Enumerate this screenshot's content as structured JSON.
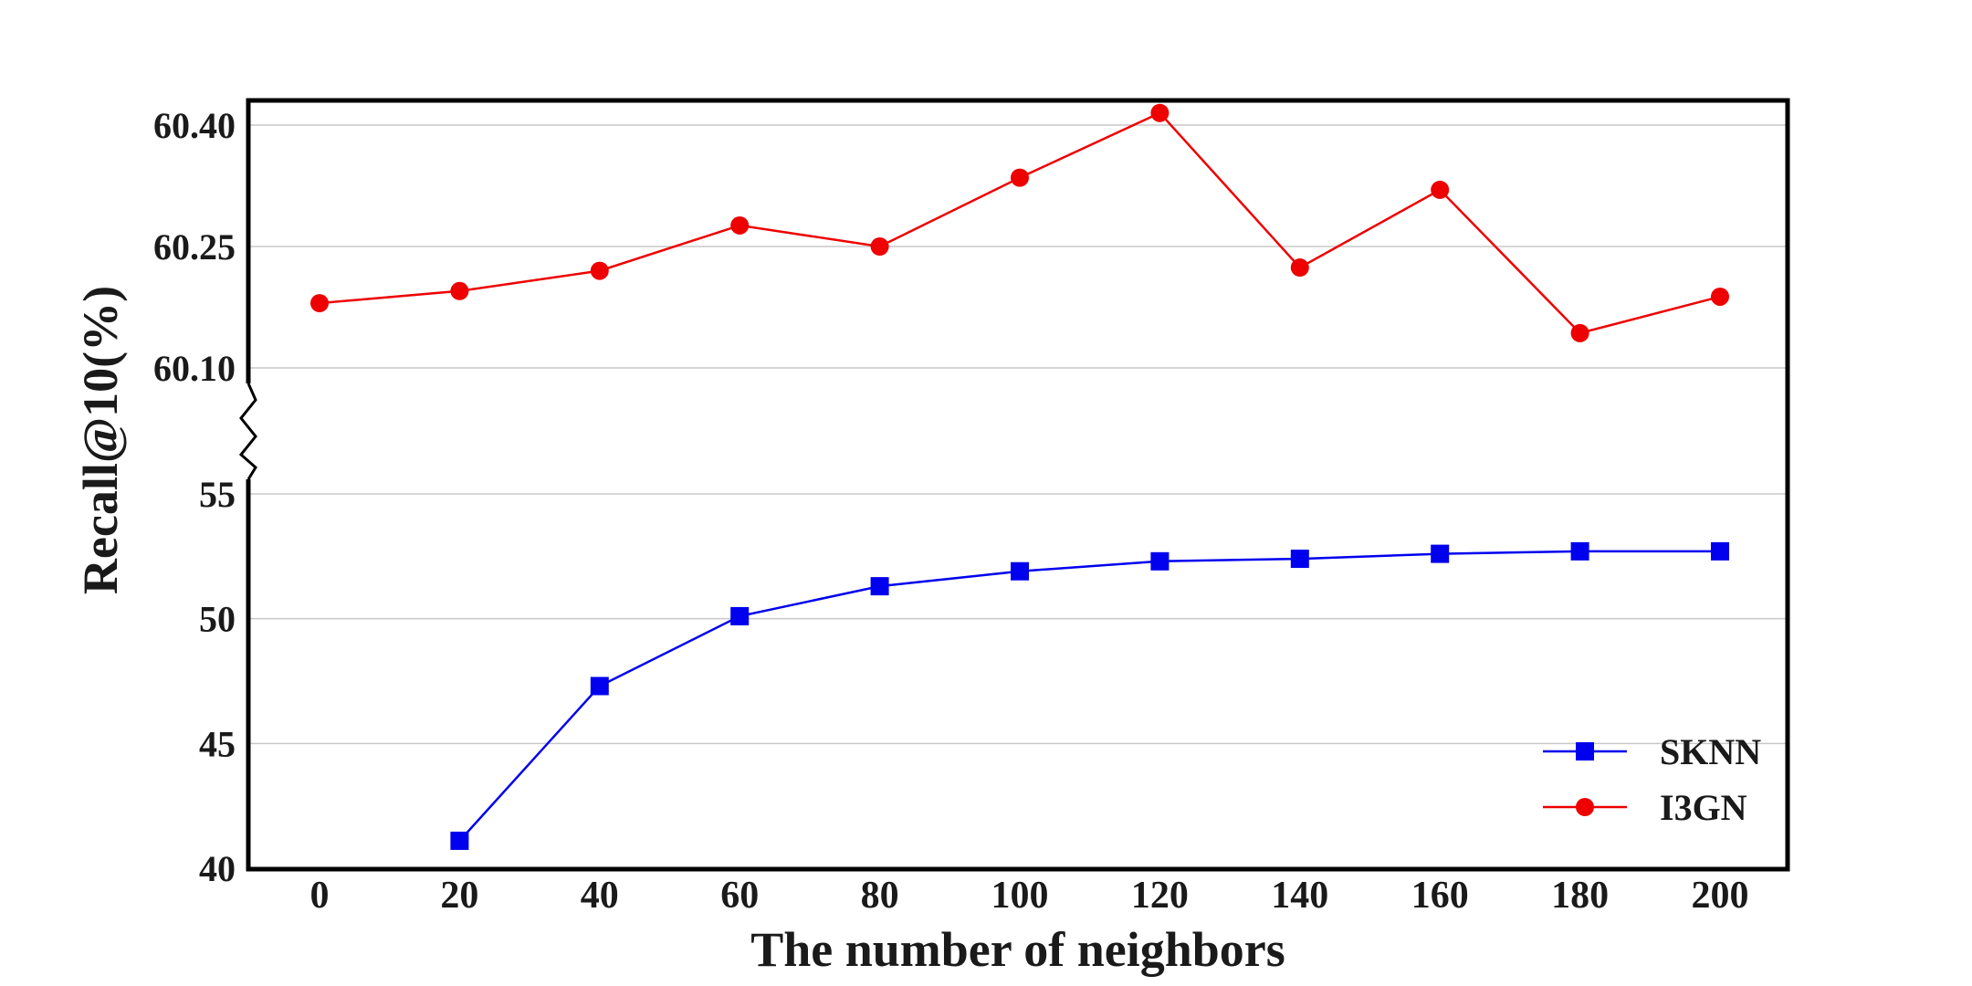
{
  "chart_data": {
    "type": "line",
    "xlabel": "The number of neighbors",
    "ylabel": "Recall@10(%)",
    "x": [
      0,
      20,
      40,
      60,
      80,
      100,
      120,
      140,
      160,
      180,
      200
    ],
    "x_ticks": [
      "0",
      "20",
      "40",
      "60",
      "80",
      "100",
      "120",
      "140",
      "160",
      "180",
      "200"
    ],
    "y_axis": {
      "broken": true,
      "upper_segment": {
        "range": [
          60.1,
          60.4
        ],
        "ticks": [
          "60.10",
          "60.25",
          "60.40"
        ]
      },
      "lower_segment": {
        "range": [
          40,
          55
        ],
        "ticks": [
          "40",
          "45",
          "50",
          "55"
        ]
      }
    },
    "grid": "horizontal",
    "legend_position": "bottom-right",
    "series": [
      {
        "name": "SKNN",
        "color": "#0000ee",
        "marker": "square",
        "segment": "lower",
        "x": [
          20,
          40,
          60,
          80,
          100,
          120,
          140,
          160,
          180,
          200
        ],
        "values": [
          41.1,
          47.3,
          50.1,
          51.3,
          51.9,
          52.3,
          52.4,
          52.6,
          52.7,
          52.7
        ]
      },
      {
        "name": "I3GN",
        "color": "#ee0000",
        "marker": "circle",
        "segment": "upper",
        "x": [
          0,
          20,
          40,
          60,
          80,
          100,
          120,
          140,
          160,
          180,
          200
        ],
        "values": [
          60.18,
          60.195,
          60.22,
          60.276,
          60.25,
          60.335,
          60.415,
          60.224,
          60.32,
          60.143,
          60.188
        ]
      }
    ]
  }
}
